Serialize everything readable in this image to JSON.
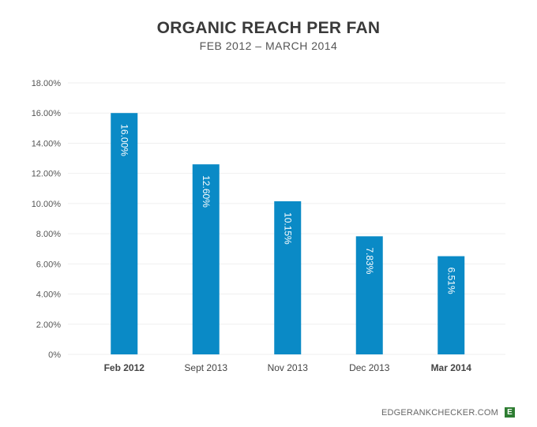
{
  "chart_data": {
    "type": "bar",
    "title": "ORGANIC REACH PER FAN",
    "subtitle": "FEB 2012 – MARCH 2014",
    "categories": [
      "Feb 2012",
      "Sept 2013",
      "Nov 2013",
      "Dec 2013",
      "Mar 2014"
    ],
    "bold_categories": [
      "Feb 2012",
      "Mar 2014"
    ],
    "values": [
      16.0,
      12.6,
      10.15,
      7.83,
      6.51
    ],
    "data_labels": [
      "16.00%",
      "12.60%",
      "10.15%",
      "7.83%",
      "6.51%"
    ],
    "ylim": [
      0,
      18
    ],
    "yticks": [
      0,
      2,
      4,
      6,
      8,
      10,
      12,
      14,
      16,
      18
    ],
    "ytick_labels": [
      "0%",
      "2.00%",
      "4.00%",
      "6.00%",
      "8.00%",
      "10.00%",
      "12.00%",
      "14.00%",
      "16.00%",
      "18.00%"
    ],
    "grid": true,
    "bar_color": "#0a8ac6",
    "xlabel": "",
    "ylabel": ""
  },
  "footer": {
    "site": "EDGERANKCHECKER.COM",
    "logo_letter": "E"
  }
}
